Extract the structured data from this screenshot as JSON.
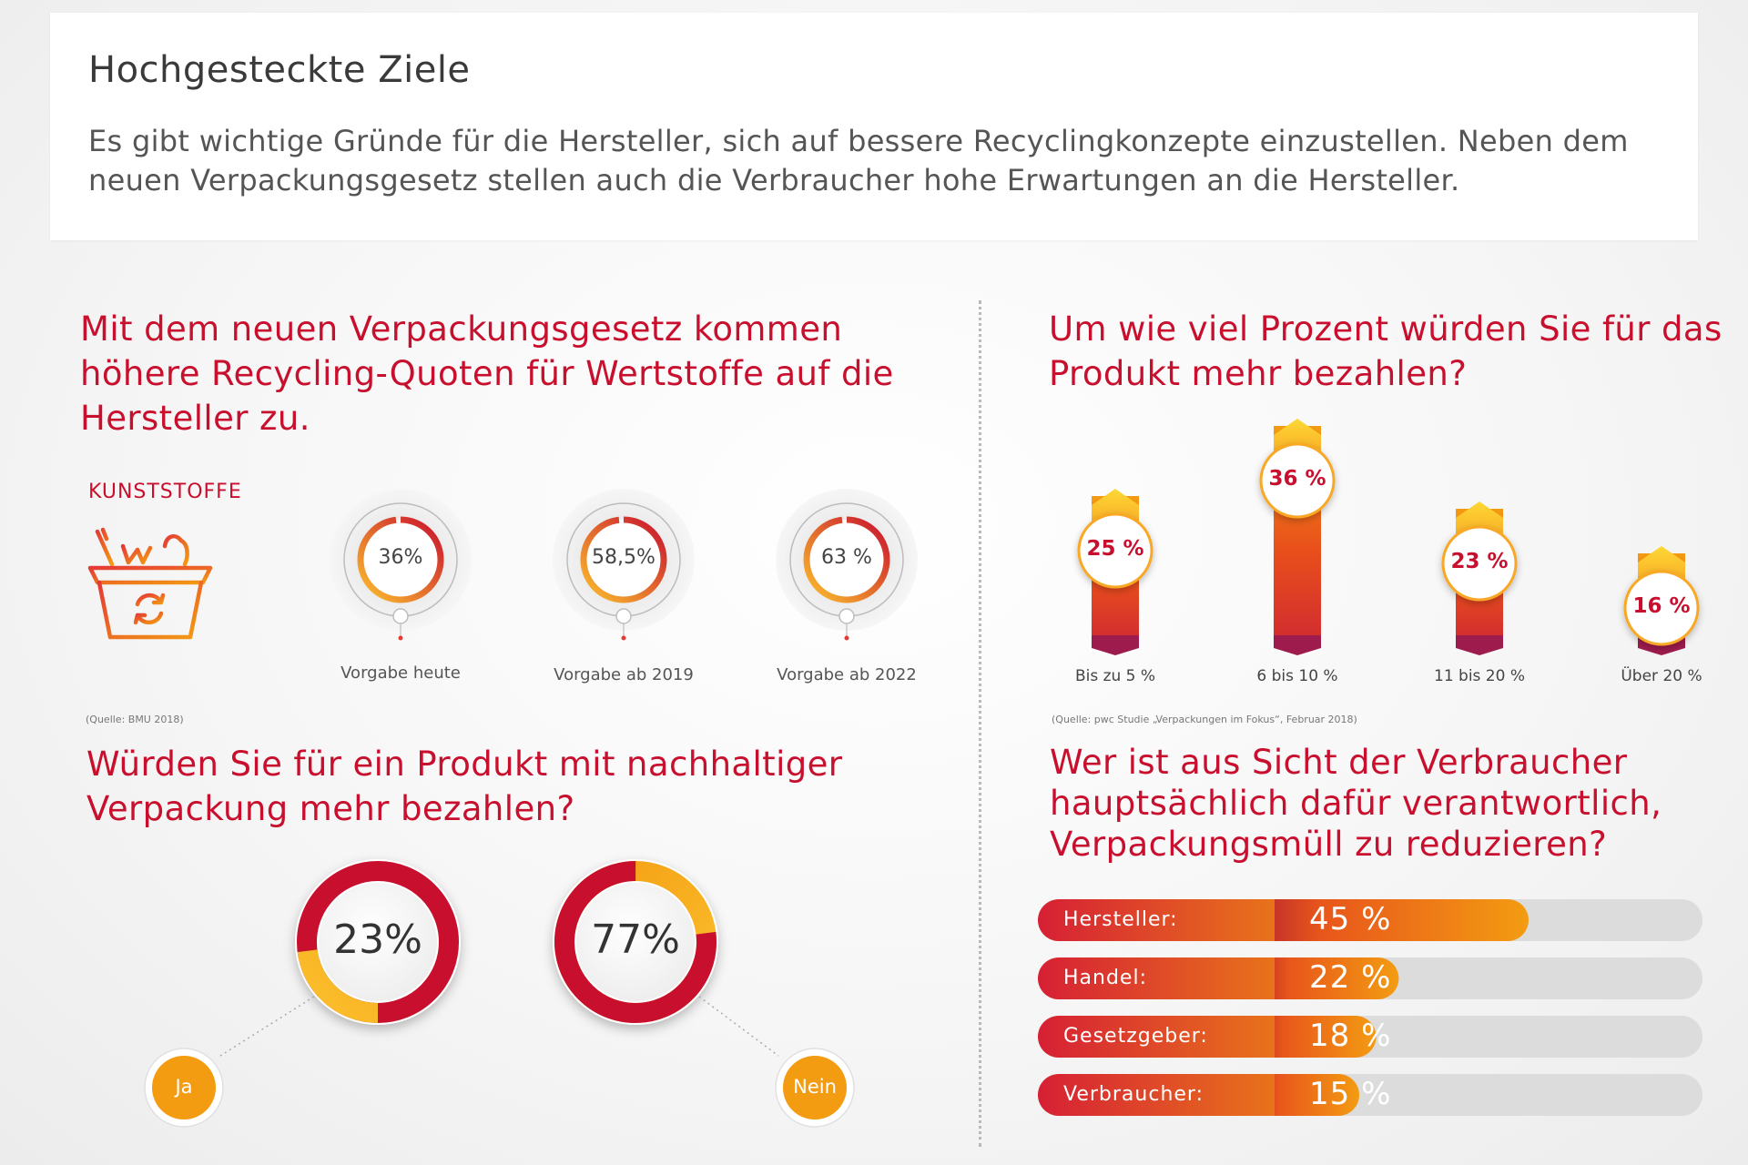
{
  "header": {
    "title": "Hochgesteckte Ziele",
    "intro": "Es gibt wichtige Gründe für die Hersteller, sich auf bessere Recyclingkonzepte einzustellen. Neben dem neuen Verpackungsgesetz stellen auch die Verbraucher hohe Erwartungen an die Hersteller."
  },
  "colors": {
    "accent": "#c8102e",
    "orange": "#f39c12",
    "yellow": "#fbc02d",
    "deep": "#9e1b4e"
  },
  "icons": {
    "basket": "recycling-basket-icon"
  },
  "chart_data": [
    {
      "id": "quoten",
      "type": "gauge",
      "title": "Mit dem neuen Verpackungsgesetz kommen höhere Recycling-Quoten für Wertstoffe auf die Hersteller zu.",
      "group_label": "KUNSTSTOFFE",
      "source": "(Quelle: BMU 2018)",
      "items": [
        {
          "label": "Vorgabe heute",
          "value_label": "36%",
          "value": 36
        },
        {
          "label": "Vorgabe ab 2019",
          "value_label": "58,5%",
          "value": 58.5
        },
        {
          "label": "Vorgabe ab 2022",
          "value_label": "63 %",
          "value": 63
        }
      ]
    },
    {
      "id": "prozent",
      "type": "bar",
      "title": "Um wie viel Prozent würden Sie für das Produkt mehr bezahlen?",
      "source": "(Quelle: pwc Studie „Verpackungen im Fokus“, Februar 2018)",
      "categories": [
        "Bis zu 5 %",
        "6 bis 10 %",
        "11 bis 20 %",
        "Über 20 %"
      ],
      "values": [
        25,
        36,
        23,
        16
      ],
      "value_labels": [
        "25 %",
        "36 %",
        "23 %",
        "16 %"
      ]
    },
    {
      "id": "mehr",
      "type": "pie",
      "title": "Würden Sie für ein Produkt mit nachhaltiger Verpackung mehr bezahlen?",
      "items": [
        {
          "label": "Ja",
          "value": 23,
          "value_label": "23%"
        },
        {
          "label": "Nein",
          "value": 77,
          "value_label": "77%"
        }
      ]
    },
    {
      "id": "verantwortlich",
      "type": "bar",
      "orientation": "horizontal",
      "title": "Wer ist aus Sicht der Verbraucher hauptsächlich dafür verantwortlich, Verpackungsmüll zu reduzieren?",
      "categories": [
        "Hersteller:",
        "Handel:",
        "Gesetzgeber:",
        "Verbraucher:"
      ],
      "values": [
        45,
        22,
        18,
        15
      ],
      "value_labels": [
        "45 %",
        "22 %",
        "18 %",
        "15 %"
      ]
    }
  ]
}
